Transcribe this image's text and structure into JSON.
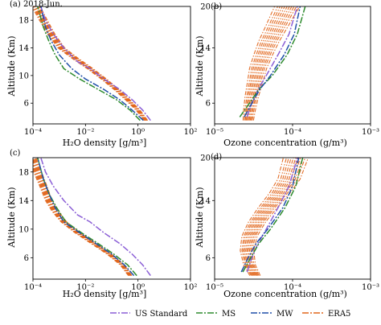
{
  "chart_data": [
    {
      "type": "line",
      "panel_label": "(a) 2018-Jun.",
      "xlabel": "H₂O density [g/m³]",
      "ylabel": "Altitude (Km)",
      "xscale": "log",
      "xlim": [
        0.0001,
        100
      ],
      "ylim": [
        3,
        20
      ],
      "xtick_labels": [
        "10⁻⁴",
        "10⁻²",
        "10⁰",
        "10²"
      ],
      "xticks": [
        0.0001,
        0.01,
        1,
        100
      ],
      "yticks": [
        6,
        10,
        14,
        18
      ],
      "series": [
        {
          "name": "US Standard",
          "color": "#8b5fd6",
          "dash": "8 2 2 2",
          "x": [
            3.0,
            1.5,
            0.6,
            0.2,
            0.05,
            0.015,
            0.005,
            0.0015,
            0.0006,
            0.0003,
            0.0002
          ],
          "y": [
            3.5,
            5,
            6.5,
            8,
            9.5,
            11,
            12,
            14,
            16,
            18,
            20
          ]
        },
        {
          "name": "MS",
          "color": "#2e8b2e",
          "dash": "8 2 2 2",
          "x": [
            1.2,
            0.5,
            0.15,
            0.03,
            0.006,
            0.0015,
            0.0007,
            0.0004,
            0.00025,
            0.00015
          ],
          "y": [
            3.5,
            5,
            6.5,
            8,
            9.5,
            11,
            13,
            15,
            17,
            20
          ]
        },
        {
          "name": "MW",
          "color": "#1f4fa8",
          "dash": "8 2 2 2",
          "x": [
            1.6,
            0.6,
            0.2,
            0.05,
            0.01,
            0.003,
            0.001,
            0.0005,
            0.0003,
            0.0002
          ],
          "y": [
            3.5,
            5,
            6.5,
            8,
            9.5,
            11,
            13,
            15,
            17,
            20
          ]
        }
      ],
      "ensemble": {
        "name": "ERA5",
        "color": "#e2661c",
        "count": 11,
        "x": [
          2.0,
          1.0,
          0.4,
          0.15,
          0.05,
          0.015,
          0.004,
          0.0012,
          0.0005,
          0.00025,
          0.00013
        ],
        "y": [
          3.5,
          5,
          6.5,
          8,
          9.5,
          11,
          12.5,
          14,
          16,
          18,
          20
        ]
      }
    },
    {
      "type": "line",
      "panel_label": "(b)",
      "xlabel": "Ozone concentration (g/m³)",
      "ylabel": "Altitude (Km)",
      "xscale": "log",
      "xlim": [
        1e-05,
        0.001
      ],
      "ylim": [
        3,
        20
      ],
      "xtick_labels": [
        "10⁻⁵",
        "10⁻⁴",
        "10⁻³"
      ],
      "xticks": [
        1e-05,
        0.0001,
        0.001
      ],
      "yticks": [
        6,
        14,
        20
      ],
      "series": [
        {
          "name": "US Standard",
          "color": "#8b5fd6",
          "dash": "8 2 2 2",
          "x": [
            2.6e-05,
            3e-05,
            3.6e-05,
            4.6e-05,
            6.5e-05,
            9e-05,
            0.000115
          ],
          "y": [
            4,
            6,
            8,
            10,
            13,
            16,
            20
          ]
        },
        {
          "name": "MS",
          "color": "#2e8b2e",
          "dash": "8 2 2 2",
          "x": [
            2.1e-05,
            2.8e-05,
            3.7e-05,
            5.5e-05,
            8.5e-05,
            0.000115,
            0.000145
          ],
          "y": [
            4,
            6,
            8,
            10,
            13,
            16,
            20
          ]
        },
        {
          "name": "MW",
          "color": "#1f4fa8",
          "dash": "8 2 2 2",
          "x": [
            2.4e-05,
            3e-05,
            3.8e-05,
            5.2e-05,
            7.8e-05,
            0.000105,
            0.000125
          ],
          "y": [
            4,
            6,
            8,
            10,
            13,
            16,
            20
          ]
        }
      ],
      "ensemble": {
        "name": "ERA5",
        "color": "#e2661c",
        "count": 11,
        "x": [
          2.7e-05,
          2.8e-05,
          3e-05,
          3.3e-05,
          3.6e-05,
          4.2e-05,
          5e-05,
          6.2e-05,
          8.5e-05
        ],
        "y": [
          3.5,
          5,
          7,
          9,
          11,
          13,
          15,
          17,
          20
        ]
      }
    },
    {
      "type": "line",
      "panel_label": "(c)",
      "xlabel": "H₂O density [g/m³]",
      "ylabel": "Altitude (Km)",
      "xscale": "log",
      "xlim": [
        0.0001,
        100
      ],
      "ylim": [
        3,
        20
      ],
      "xtick_labels": [
        "10⁻⁴",
        "10⁻²",
        "10⁰",
        "10²"
      ],
      "xticks": [
        0.0001,
        0.01,
        1,
        100
      ],
      "yticks": [
        6,
        10,
        14,
        18
      ],
      "series": [
        {
          "name": "US Standard",
          "color": "#8b5fd6",
          "dash": "8 2 2 2",
          "x": [
            3.0,
            1.5,
            0.6,
            0.2,
            0.05,
            0.015,
            0.005,
            0.0015,
            0.0006,
            0.0003,
            0.0002
          ],
          "y": [
            3.5,
            5,
            6.5,
            8,
            9.5,
            11,
            12,
            14,
            16,
            18,
            20
          ]
        },
        {
          "name": "MS",
          "color": "#2e8b2e",
          "dash": "8 2 2 2",
          "x": [
            0.9,
            0.4,
            0.12,
            0.03,
            0.007,
            0.0018,
            0.0008,
            0.0004,
            0.00025,
            0.00015
          ],
          "y": [
            3.5,
            5,
            6.5,
            8,
            9.5,
            11,
            13,
            15,
            17,
            20
          ]
        },
        {
          "name": "MW",
          "color": "#1f4fa8",
          "dash": "8 2 2 2",
          "x": [
            0.7,
            0.3,
            0.1,
            0.025,
            0.006,
            0.0015,
            0.0007,
            0.0004,
            0.00025,
            0.00015
          ],
          "y": [
            3.5,
            5,
            6.5,
            8,
            9.5,
            11,
            13,
            15,
            17,
            20
          ]
        }
      ],
      "ensemble": {
        "name": "ERA5",
        "color": "#e2661c",
        "count": 11,
        "x": [
          0.5,
          0.25,
          0.08,
          0.02,
          0.005,
          0.0015,
          0.0007,
          0.0004,
          0.00025,
          0.00015,
          0.0001
        ],
        "y": [
          3.5,
          5,
          6.5,
          8,
          9.5,
          11,
          12.5,
          14,
          16,
          18,
          20
        ]
      }
    },
    {
      "type": "line",
      "panel_label": "(d)",
      "xlabel": "Ozone concentration (g/m³)",
      "ylabel": "Altitude (Km)",
      "xscale": "log",
      "xlim": [
        1e-05,
        0.001
      ],
      "ylim": [
        3,
        20
      ],
      "xtick_labels": [
        "10⁻⁵",
        "10⁻⁴",
        "10⁻³"
      ],
      "xticks": [
        1e-05,
        0.0001,
        0.001
      ],
      "yticks": [
        6,
        14,
        20
      ],
      "series": [
        {
          "name": "US Standard",
          "color": "#8b5fd6",
          "dash": "8 2 2 2",
          "x": [
            2.6e-05,
            3e-05,
            3.6e-05,
            4.6e-05,
            6.5e-05,
            9e-05,
            0.000115
          ],
          "y": [
            4,
            6,
            8,
            10,
            13,
            16,
            20
          ]
        },
        {
          "name": "MS",
          "color": "#2e8b2e",
          "dash": "8 2 2 2",
          "x": [
            2.3e-05,
            2.9e-05,
            3.7e-05,
            5.2e-05,
            8e-05,
            0.00011,
            0.000135
          ],
          "y": [
            4,
            6,
            8,
            10,
            13,
            16,
            20
          ]
        },
        {
          "name": "MW",
          "color": "#1f4fa8",
          "dash": "8 2 2 2",
          "x": [
            2.2e-05,
            2.7e-05,
            3.4e-05,
            4.8e-05,
            7.5e-05,
            0.0001,
            0.00012
          ],
          "y": [
            4,
            6,
            8,
            10,
            13,
            16,
            20
          ]
        }
      ],
      "ensemble": {
        "name": "ERA5",
        "color": "#e2661c",
        "count": 11,
        "x": [
          3.3e-05,
          2.8e-05,
          2.6e-05,
          2.8e-05,
          3.5e-05,
          4.8e-05,
          6.8e-05,
          9e-05,
          0.00011
        ],
        "y": [
          3.5,
          5,
          7,
          9,
          11,
          13,
          15,
          17,
          20
        ]
      }
    }
  ],
  "legend": {
    "placement": "bottom",
    "items": [
      {
        "label": "US Standard",
        "color": "#8b5fd6"
      },
      {
        "label": "MS",
        "color": "#2e8b2e"
      },
      {
        "label": "MW",
        "color": "#1f4fa8"
      },
      {
        "label": "ERA5",
        "color": "#e2661c"
      }
    ]
  }
}
